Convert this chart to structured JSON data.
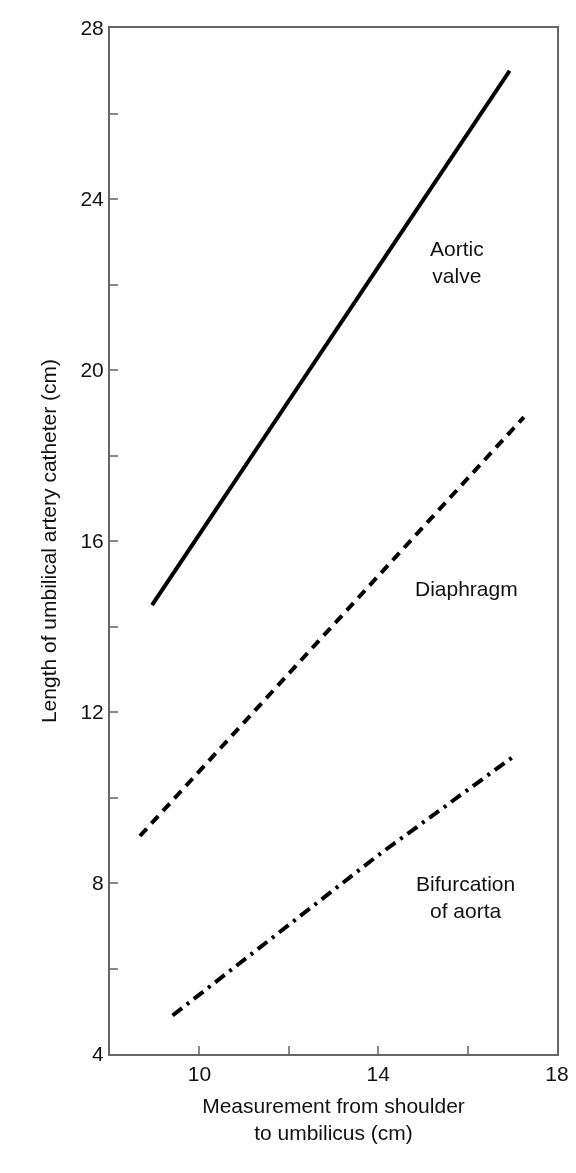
{
  "chart_data": {
    "type": "line",
    "xlabel": "Measurement from shoulder\nto umbilicus (cm)",
    "ylabel": "Length of umbilical artery catheter (cm)",
    "xlim": [
      8,
      18
    ],
    "xticks": [
      10,
      {
        "value": 12,
        "label": null
      },
      14,
      {
        "value": 16,
        "label": null
      },
      18
    ],
    "ylim": [
      4,
      28
    ],
    "yticks": [
      4,
      {
        "value": 6,
        "label": null
      },
      8,
      {
        "value": 10,
        "label": null
      },
      12,
      {
        "value": 14,
        "label": null
      },
      16,
      {
        "value": 18,
        "label": null
      },
      20,
      {
        "value": 22,
        "label": null
      },
      24,
      {
        "value": 26,
        "label": null
      },
      28
    ],
    "grid": false,
    "legend": false,
    "marker": "none",
    "series": [
      {
        "name": "Aortic\nvalve",
        "color": "#000000",
        "line_style": "solid",
        "x": [
          8.94,
          16.94
        ],
        "values": [
          14.5,
          27.0
        ]
      },
      {
        "name": "Diaphragm",
        "color": "#000000",
        "line_style": "dashed",
        "x": [
          8.67,
          17.26
        ],
        "values": [
          9.1,
          18.9
        ]
      },
      {
        "name": "Bifurcation\nof aorta",
        "color": "#000000",
        "line_style": "dashdot",
        "x": [
          9.4,
          14.0,
          17.08
        ],
        "values": [
          4.9,
          8.65,
          11.0
        ]
      }
    ]
  }
}
